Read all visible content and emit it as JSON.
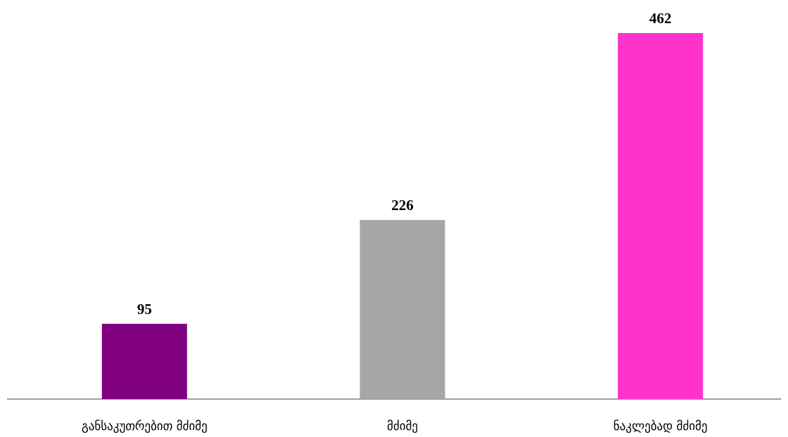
{
  "chart_data": {
    "type": "bar",
    "categories": [
      "განსაკუთრებით მძიმე",
      "მძიმე",
      "ნაკლებად მძიმე"
    ],
    "values": [
      95,
      226,
      462
    ],
    "colors": [
      "#800080",
      "#A6A6A6",
      "#FF33CC"
    ],
    "title": "",
    "xlabel": "",
    "ylabel": "",
    "ylim": [
      0,
      462
    ],
    "grid": false,
    "legend": "none",
    "data_labels": true
  }
}
